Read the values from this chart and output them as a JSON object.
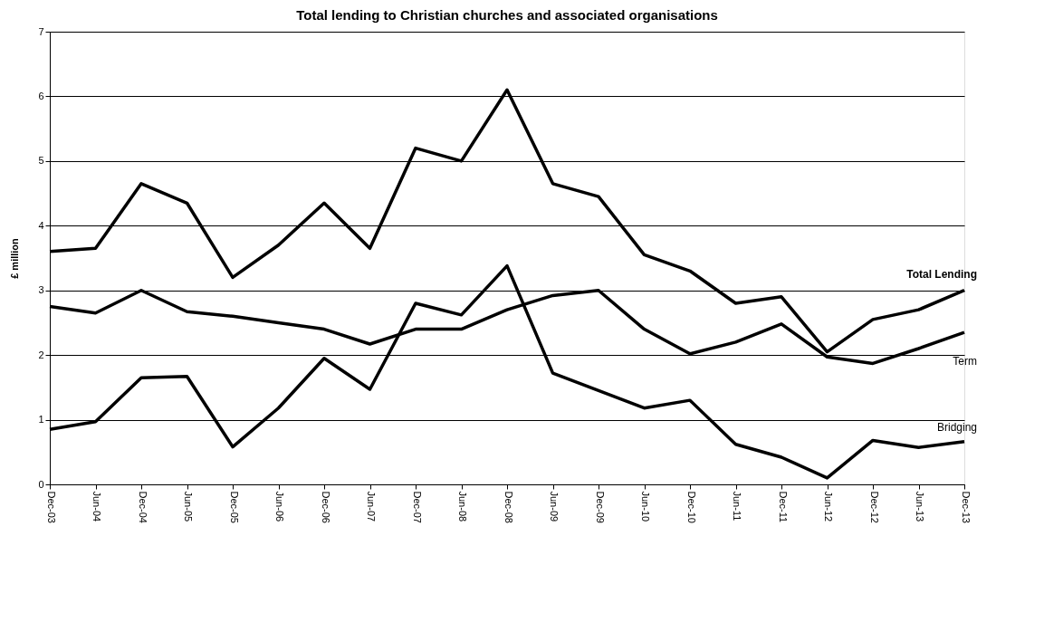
{
  "chart_data": {
    "type": "line",
    "title": "Total lending to Christian churches and associated organisations",
    "ylabel": "£ million",
    "categories": [
      "Dec-03",
      "Jun-04",
      "Dec-04",
      "Jun-05",
      "Dec-05",
      "Jun-06",
      "Dec-06",
      "Jun-07",
      "Dec-07",
      "Jun-08",
      "Dec-08",
      "Jun-09",
      "Dec-09",
      "Jun-10",
      "Dec-10",
      "Jun-11",
      "Dec-11",
      "Jun-12",
      "Dec-12",
      "Jun-13",
      "Dec-13"
    ],
    "series": [
      {
        "name": "Total Lending",
        "color": "#000000",
        "values": [
          3.6,
          3.65,
          4.65,
          4.35,
          3.2,
          3.7,
          4.35,
          3.65,
          5.2,
          5.0,
          6.1,
          4.65,
          4.45,
          3.55,
          3.3,
          2.8,
          2.9,
          2.05,
          2.55,
          2.7,
          3.0
        ]
      },
      {
        "name": "Term",
        "color": "#000000",
        "values": [
          2.75,
          2.65,
          3.0,
          2.67,
          2.6,
          2.5,
          2.4,
          2.17,
          2.4,
          2.4,
          2.7,
          2.92,
          3.0,
          2.4,
          2.02,
          2.2,
          2.48,
          1.97,
          1.87,
          2.1,
          2.35
        ]
      },
      {
        "name": "Bridging",
        "color": "#000000",
        "values": [
          0.85,
          0.97,
          1.65,
          1.67,
          0.58,
          1.18,
          1.95,
          1.47,
          2.8,
          2.62,
          3.38,
          1.72,
          1.45,
          1.18,
          1.3,
          0.62,
          0.42,
          0.1,
          0.68,
          0.57,
          0.66
        ]
      }
    ],
    "ylim": [
      0,
      7
    ],
    "yticks": [
      0,
      1,
      2,
      3,
      4,
      5,
      6,
      7
    ],
    "grid": "y",
    "legend": false,
    "marker": "none",
    "line_style": "solid"
  }
}
